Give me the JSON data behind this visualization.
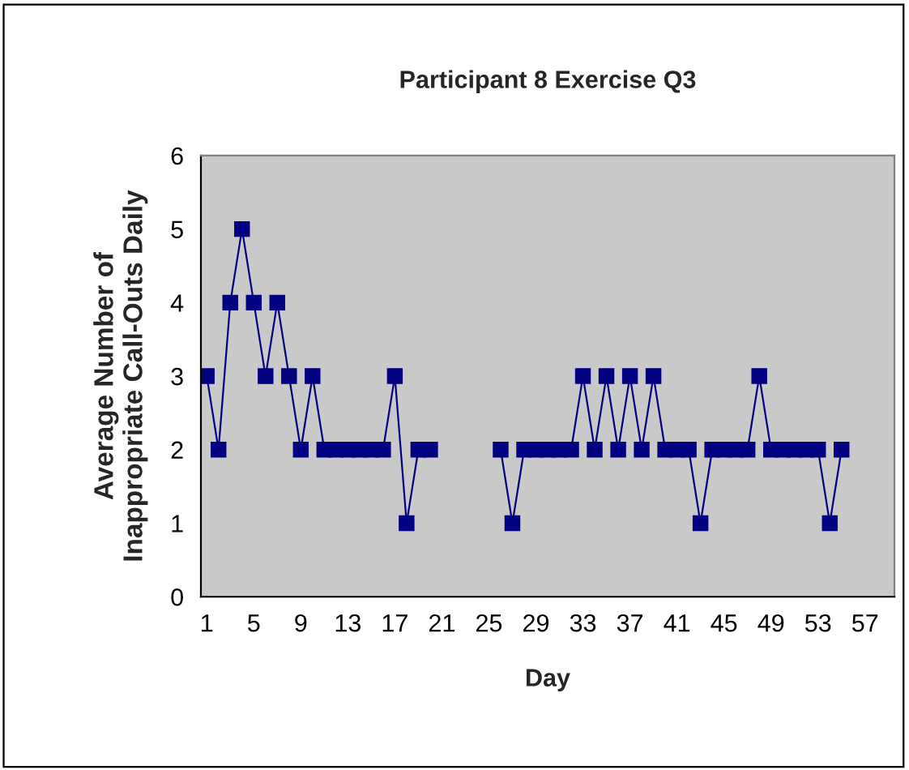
{
  "chart_data": {
    "type": "line",
    "title": "Participant 8 Exercise Q3",
    "xlabel": "Day",
    "ylabel": "Average Number of\nInappropriate Call-Outs Daily",
    "categories": [
      "1",
      null,
      null,
      null,
      "5",
      null,
      null,
      null,
      "9",
      null,
      null,
      null,
      "13",
      null,
      null,
      null,
      "17",
      null,
      null,
      null,
      "21",
      null,
      null,
      null,
      "25",
      null,
      null,
      null,
      "29",
      null,
      null,
      null,
      "33",
      null,
      null,
      null,
      "37",
      null,
      null,
      null,
      "41",
      null,
      null,
      null,
      "45",
      null,
      null,
      null,
      "49",
      null,
      null,
      null,
      "53",
      null,
      null,
      null,
      "57",
      null,
      null
    ],
    "series": [
      {
        "color": "#000080",
        "values": [
          3,
          2,
          4,
          5,
          4,
          3,
          4,
          3,
          2,
          3,
          2,
          2,
          2,
          2,
          2,
          2,
          3,
          1,
          2,
          2,
          null,
          null,
          null,
          null,
          null,
          2,
          1,
          2,
          2,
          2,
          2,
          2,
          3,
          2,
          3,
          2,
          3,
          2,
          3,
          2,
          2,
          2,
          1,
          2,
          2,
          2,
          2,
          3,
          2,
          2,
          2,
          2,
          2,
          1,
          2,
          null,
          null,
          null,
          null
        ]
      }
    ],
    "ylim": [
      0,
      6
    ],
    "yticks": [
      0,
      1,
      2,
      3,
      4,
      5,
      6
    ],
    "legend": false,
    "marker": "square",
    "line_style": "solid"
  }
}
